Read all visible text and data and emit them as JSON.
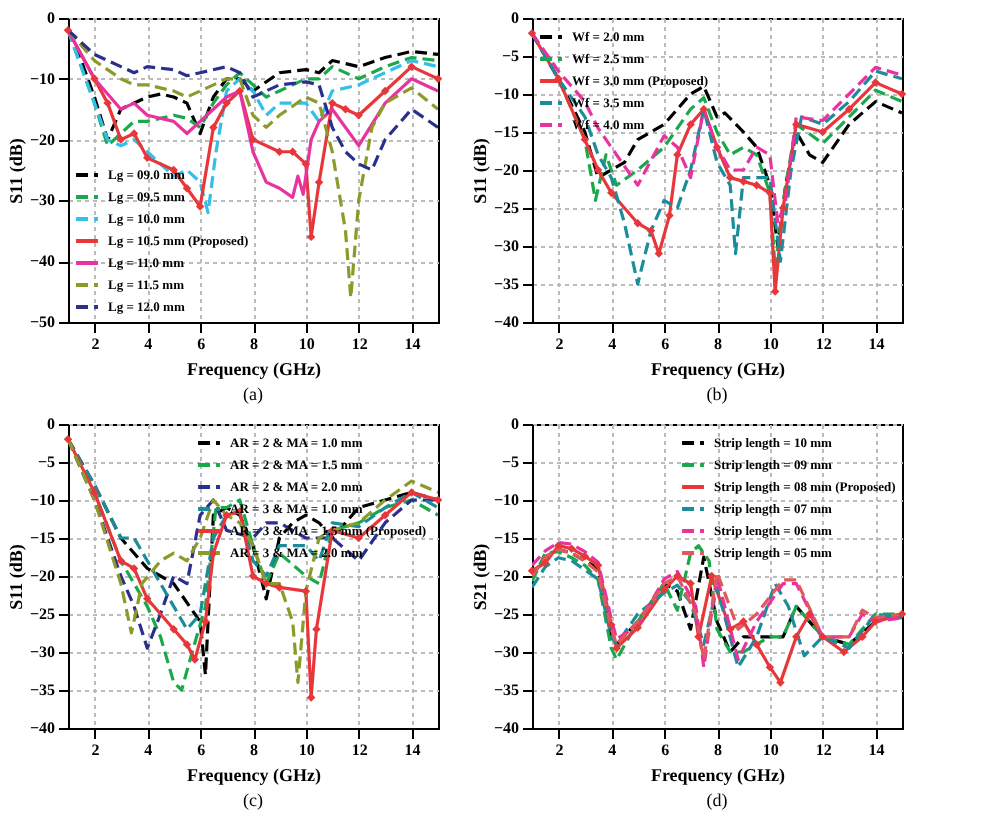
{
  "chart_data": [
    {
      "type": "line",
      "title": "(a)",
      "xlabel": "Frequency (GHz)",
      "ylabel": "S11 (dB)",
      "xlim": [
        1,
        15
      ],
      "ylim": [
        -50,
        0
      ],
      "xticks": [
        2,
        4,
        6,
        8,
        10,
        12,
        14
      ],
      "yticks": [
        -50,
        -40,
        -30,
        -20,
        -10,
        0
      ],
      "grid": true,
      "legend": "bottom left",
      "series": [
        {
          "name": "Lg = 09.0 mm",
          "color": "#000000",
          "line_style": "dashed",
          "x": [
            1,
            1.5,
            2,
            2.5,
            3,
            4,
            4.5,
            5,
            5.5,
            6,
            6.5,
            7,
            7.5,
            8,
            9,
            10,
            10.5,
            11,
            12,
            13,
            14,
            15
          ],
          "values": [
            -2,
            -7,
            -13,
            -20,
            -15,
            -13,
            -12.5,
            -13,
            -14,
            -19,
            -13,
            -10,
            -10,
            -12,
            -9,
            -8.5,
            -9,
            -7,
            -8,
            -6.5,
            -5.5,
            -6
          ]
        },
        {
          "name": "Lg = 09.5 mm",
          "color": "#1aa84a",
          "line_style": "dashed",
          "x": [
            1,
            2,
            2.5,
            3,
            3.5,
            4,
            5,
            5.5,
            6,
            6.5,
            7,
            7.5,
            8,
            8.5,
            9,
            10,
            10.5,
            11,
            12,
            13,
            14,
            15
          ],
          "values": [
            -2,
            -14,
            -21,
            -19,
            -17,
            -17,
            -16,
            -16.5,
            -18,
            -14,
            -11,
            -9,
            -11,
            -13,
            -12,
            -10,
            -10,
            -8,
            -10,
            -8,
            -6.5,
            -7
          ]
        },
        {
          "name": "Lg = 10.0 mm",
          "color": "#33c0e8",
          "line_style": "dashed",
          "x": [
            1,
            2,
            2.5,
            3,
            3.5,
            4,
            5,
            5.5,
            6,
            6.3,
            6.6,
            7,
            7.5,
            8,
            8.5,
            9,
            10,
            10.5,
            11,
            12,
            13,
            14,
            15
          ],
          "values": [
            -2,
            -14,
            -20,
            -21,
            -20,
            -22,
            -26,
            -25,
            -27,
            -32,
            -22,
            -12,
            -10,
            -12,
            -16,
            -14,
            -14,
            -17,
            -12,
            -11,
            -9,
            -7,
            -8
          ]
        },
        {
          "name": "Lg = 10.5 mm (Proposed)",
          "color": "#e8373a",
          "line_style": "solid",
          "marker": "diamond",
          "x": [
            1,
            2,
            2.5,
            3,
            3.5,
            4,
            5,
            5.5,
            6,
            6.5,
            7,
            7.5,
            8,
            9,
            9.5,
            10,
            10.2,
            10.5,
            11,
            11.5,
            12,
            13,
            14,
            15
          ],
          "values": [
            -2,
            -10,
            -14,
            -20,
            -19,
            -23,
            -25,
            -28,
            -31,
            -18,
            -14,
            -12,
            -20,
            -22,
            -22,
            -24,
            -36,
            -27,
            -14,
            -15,
            -16,
            -12,
            -8,
            -10
          ]
        },
        {
          "name": "Lg = 11.0 mm",
          "color": "#e8329e",
          "line_style": "solid",
          "x": [
            1,
            2,
            3,
            3.5,
            4,
            5,
            5.5,
            6,
            6.5,
            7,
            7.5,
            8,
            8.5,
            9,
            9.5,
            9.7,
            9.9,
            10.2,
            10.5,
            11,
            12,
            13,
            14,
            15
          ],
          "values": [
            -2,
            -10,
            -15,
            -14,
            -16,
            -17,
            -19,
            -17,
            -15,
            -13,
            -12,
            -22,
            -27,
            -28,
            -29.5,
            -26,
            -29,
            -20,
            -17,
            -15,
            -21,
            -14,
            -10,
            -12
          ]
        },
        {
          "name": "Lg = 11.5 mm",
          "color": "#8c9a2a",
          "line_style": "dashed",
          "x": [
            1,
            2,
            3,
            3.5,
            4,
            5,
            5.5,
            6,
            7,
            7.5,
            8,
            8.5,
            9,
            10,
            10.5,
            11,
            11.5,
            11.7,
            12,
            12.5,
            13,
            14,
            15
          ],
          "values": [
            -2,
            -7,
            -10,
            -11,
            -11,
            -12,
            -13,
            -12,
            -10,
            -10,
            -16,
            -18,
            -16,
            -13,
            -14,
            -22,
            -35,
            -46,
            -30,
            -18,
            -14,
            -11.5,
            -15
          ]
        },
        {
          "name": "Lg = 12.0 mm",
          "color": "#2a2f8c",
          "line_style": "dashed",
          "x": [
            1,
            2,
            3,
            3.5,
            4,
            5,
            5.5,
            6,
            7,
            7.5,
            8,
            9,
            10,
            10.5,
            11,
            11.5,
            12,
            12.5,
            13,
            14,
            15
          ],
          "values": [
            -2,
            -6,
            -8,
            -9,
            -8,
            -8.5,
            -9.5,
            -9,
            -8,
            -9,
            -13,
            -11,
            -10.5,
            -11,
            -18,
            -22,
            -24,
            -25,
            -20,
            -15,
            -18
          ]
        }
      ]
    },
    {
      "type": "line",
      "title": "(b)",
      "xlabel": "Frequency (GHz)",
      "ylabel": "S11 (dB)",
      "xlim": [
        1,
        15
      ],
      "ylim": [
        -40,
        0
      ],
      "xticks": [
        2,
        4,
        6,
        8,
        10,
        12,
        14
      ],
      "yticks": [
        -40,
        -35,
        -30,
        -25,
        -20,
        -15,
        -10,
        -5,
        0
      ],
      "grid": true,
      "legend": "top left",
      "series": [
        {
          "name": "Wf = 2.0 mm",
          "color": "#000000",
          "line_style": "dashed",
          "x": [
            1,
            2,
            3,
            3.5,
            4,
            4.5,
            5,
            6,
            7,
            7.5,
            8,
            8.3,
            9,
            9.5,
            10,
            10.3,
            10.6,
            11,
            11.5,
            12,
            13,
            14,
            15
          ],
          "values": [
            -2,
            -8,
            -15,
            -21,
            -20,
            -19,
            -16,
            -14,
            -10,
            -9,
            -13,
            -12.5,
            -15,
            -17,
            -22,
            -30,
            -22,
            -15,
            -18,
            -19,
            -14,
            -11,
            -12.5
          ]
        },
        {
          "name": "Wf = 2.5 mm",
          "color": "#1aa84a",
          "line_style": "dashed",
          "x": [
            1,
            2,
            3,
            3.4,
            3.8,
            4.2,
            5,
            6,
            7,
            7.5,
            8,
            8.5,
            9,
            9.5,
            10,
            10.2,
            10.6,
            11,
            12,
            13,
            14,
            15
          ],
          "values": [
            -2,
            -8,
            -16,
            -24,
            -18,
            -22,
            -20,
            -17,
            -12,
            -10.5,
            -15,
            -18,
            -17,
            -18,
            -23,
            -33,
            -22,
            -14,
            -16.5,
            -13,
            -9.5,
            -11
          ]
        },
        {
          "name": "Wf = 3.0 mm (Proposed)",
          "color": "#e8373a",
          "line_style": "solid",
          "marker": "diamond",
          "x": [
            1,
            2,
            3,
            3.5,
            4,
            5,
            5.5,
            5.8,
            6.2,
            6.5,
            7,
            7.5,
            8,
            8.5,
            9,
            9.5,
            10,
            10.2,
            10.5,
            11,
            12,
            13,
            14,
            15
          ],
          "values": [
            -2,
            -8,
            -16,
            -20,
            -23,
            -27,
            -28,
            -31,
            -26,
            -18,
            -14,
            -12,
            -17,
            -21,
            -21.5,
            -22,
            -23,
            -36,
            -25,
            -14,
            -15,
            -12,
            -8.5,
            -10
          ]
        },
        {
          "name": "Wf = 3.5 mm",
          "color": "#1a8c9a",
          "line_style": "dashed",
          "x": [
            1,
            2,
            3,
            3.5,
            4,
            4.5,
            5,
            5.5,
            6,
            6.5,
            7,
            7.5,
            8,
            8.5,
            8.7,
            9,
            9.5,
            10,
            10.4,
            10.8,
            11.2,
            12,
            13,
            14,
            15
          ],
          "values": [
            -2,
            -8,
            -13,
            -18,
            -21,
            -27,
            -35,
            -28,
            -24,
            -25,
            -20,
            -12,
            -19,
            -22,
            -31,
            -21,
            -21,
            -21,
            -32,
            -20,
            -13,
            -14,
            -11,
            -7,
            -8
          ]
        },
        {
          "name": "Wf = 4.0 mm",
          "color": "#e8329e",
          "line_style": "dashed",
          "x": [
            1,
            2,
            3,
            3.5,
            4,
            5,
            6,
            6.5,
            7,
            7.5,
            8,
            8.5,
            9,
            9.5,
            10,
            10.3,
            10.6,
            11,
            12,
            13,
            14,
            15
          ],
          "values": [
            -2,
            -7,
            -11,
            -14.5,
            -17,
            -22,
            -15.5,
            -17,
            -21,
            -12,
            -17,
            -20,
            -20,
            -17,
            -18,
            -27,
            -24,
            -13,
            -13.5,
            -10,
            -6.5,
            -7.5
          ]
        }
      ]
    },
    {
      "type": "line",
      "title": "(c)",
      "xlabel": "Frequency (GHz)",
      "ylabel": "S11 (dB)",
      "xlim": [
        1,
        15
      ],
      "ylim": [
        -40,
        0
      ],
      "xticks": [
        2,
        4,
        6,
        8,
        10,
        12,
        14
      ],
      "yticks": [
        -40,
        -35,
        -30,
        -25,
        -20,
        -15,
        -10,
        -5,
        0
      ],
      "grid": true,
      "legend": "top right",
      "series": [
        {
          "name": "AR = 2  & MA = 1.0 mm",
          "color": "#000000",
          "line_style": "dashed",
          "x": [
            1,
            2,
            3,
            4,
            5,
            6,
            6.2,
            6.5,
            7,
            7.5,
            8,
            8.5,
            9,
            9.5,
            10,
            10.5,
            11,
            12,
            13,
            14,
            15
          ],
          "values": [
            -2,
            -8,
            -15,
            -19,
            -21,
            -26,
            -33,
            -12,
            -11,
            -12,
            -16,
            -23,
            -15,
            -13,
            -12,
            -13,
            -15,
            -11,
            -10,
            -9,
            -10
          ]
        },
        {
          "name": "AR = 2  & MA = 1.5 mm",
          "color": "#1aa84a",
          "line_style": "dashed",
          "x": [
            1,
            2,
            3,
            4,
            4.5,
            5,
            5.3,
            5.7,
            6.2,
            6.6,
            7,
            7.5,
            8,
            8.5,
            9,
            10,
            10.5,
            11,
            12,
            13,
            14,
            15
          ],
          "values": [
            -2,
            -9,
            -18,
            -24,
            -28,
            -34,
            -35,
            -30,
            -24,
            -11,
            -11,
            -10,
            -16,
            -21,
            -17,
            -20,
            -21,
            -14,
            -13,
            -11,
            -10,
            -12
          ]
        },
        {
          "name": "AR = 2  & MA = 2.0 mm",
          "color": "#2a2f8c",
          "line_style": "dashed",
          "x": [
            1,
            2,
            3,
            3.5,
            4,
            4.5,
            5,
            5.5,
            6,
            6.5,
            7,
            8,
            8.5,
            9,
            10,
            11,
            12,
            13,
            14,
            15
          ],
          "values": [
            -2,
            -10,
            -20,
            -24,
            -29.5,
            -25,
            -20,
            -21,
            -12,
            -10,
            -14,
            -15,
            -13,
            -13,
            -15,
            -15,
            -18,
            -13,
            -10,
            -10
          ]
        },
        {
          "name": "AR = 3  & MA = 1.0 mm",
          "color": "#1a8c9a",
          "line_style": "dashed",
          "x": [
            1,
            2,
            3,
            3.5,
            4,
            5,
            5.5,
            6,
            6.5,
            7,
            7.5,
            8,
            8.5,
            9,
            10,
            10.5,
            11,
            12,
            13,
            14,
            15
          ],
          "values": [
            -2,
            -8,
            -15,
            -15,
            -18,
            -24,
            -27,
            -25,
            -15,
            -12,
            -11.5,
            -18,
            -20,
            -16,
            -16,
            -18,
            -13,
            -13.5,
            -11,
            -9,
            -11
          ]
        },
        {
          "name": "AR = 3  & MA = 1.5 mm (Proposed)",
          "color": "#e8373a",
          "line_style": "solid",
          "marker": "diamond",
          "x": [
            1,
            2,
            3,
            3.5,
            4,
            5,
            5.5,
            5.8,
            6.2,
            6.5,
            7,
            7.5,
            8,
            8.5,
            9,
            10,
            10.2,
            10.4,
            11,
            12,
            13,
            14,
            15
          ],
          "values": [
            -2,
            -9,
            -18,
            -19,
            -23,
            -27,
            -29,
            -31,
            -26,
            -17,
            -12,
            -11.5,
            -20,
            -21,
            -21.5,
            -22,
            -36,
            -27,
            -14,
            -15,
            -12,
            -9,
            -10
          ]
        },
        {
          "name": "AR = 3  & MA = 2.0 mm",
          "color": "#8c9a2a",
          "line_style": "dashed",
          "x": [
            1,
            2,
            3,
            3.4,
            3.8,
            4.5,
            5,
            5.5,
            6,
            6.5,
            7,
            7.5,
            8,
            8.5,
            9,
            9.5,
            9.7,
            10,
            10.5,
            11,
            12,
            13,
            14,
            15
          ],
          "values": [
            -2,
            -10,
            -21,
            -27.5,
            -21,
            -18,
            -17,
            -18,
            -15,
            -10,
            -12,
            -13,
            -16,
            -21,
            -21,
            -26,
            -34,
            -22,
            -15,
            -14,
            -13,
            -10,
            -7.5,
            -9
          ]
        }
      ]
    },
    {
      "type": "line",
      "title": "(d)",
      "xlabel": "Frequency (GHz)",
      "ylabel": "S21 (dB)",
      "xlim": [
        1,
        15
      ],
      "ylim": [
        -40,
        0
      ],
      "xticks": [
        2,
        4,
        6,
        8,
        10,
        12,
        14
      ],
      "yticks": [
        -40,
        -35,
        -30,
        -25,
        -20,
        -15,
        -10,
        -5,
        0
      ],
      "grid": true,
      "legend": "top right",
      "series": [
        {
          "name": "Strip length = 10 mm",
          "color": "#000000",
          "line_style": "dashed",
          "x": [
            1,
            1.5,
            2,
            2.5,
            3,
            3.5,
            4,
            4.2,
            5,
            6,
            6.5,
            7,
            7.5,
            8,
            8.5,
            9,
            10,
            10.5,
            11,
            12,
            13,
            14,
            15
          ],
          "values": [
            -20,
            -17.5,
            -16.5,
            -17,
            -18,
            -19,
            -28,
            -29,
            -26,
            -21,
            -22,
            -27,
            -17.5,
            -26,
            -30,
            -28,
            -28,
            -28,
            -24,
            -28,
            -29,
            -26,
            -25
          ]
        },
        {
          "name": "Strip length = 09 mm",
          "color": "#1aa84a",
          "line_style": "dashed",
          "x": [
            1,
            1.5,
            2,
            2.5,
            3,
            3.5,
            4,
            4.2,
            5,
            6,
            6.5,
            7,
            7.3,
            7.7,
            8,
            8.5,
            9,
            10,
            10.5,
            11,
            12,
            13,
            14,
            15
          ],
          "values": [
            -20.7,
            -17,
            -16.8,
            -17.6,
            -18.6,
            -20.5,
            -29.5,
            -31,
            -26,
            -21,
            -24.5,
            -17,
            -16,
            -18,
            -27,
            -30,
            -30,
            -28,
            -28,
            -24,
            -28,
            -29,
            -25,
            -25
          ]
        },
        {
          "name": "Strip length = 08 mm (Proposed)",
          "color": "#e8373a",
          "line_style": "solid",
          "marker": "diamond",
          "x": [
            1,
            1.5,
            2,
            2.5,
            3,
            3.5,
            4,
            4.2,
            5,
            6,
            6.5,
            7,
            7.3,
            7.8,
            8.5,
            9,
            9.5,
            10,
            10.4,
            11,
            11.5,
            12,
            12.8,
            13.5,
            14,
            15
          ],
          "values": [
            -19.3,
            -18.3,
            -16,
            -16.4,
            -17.4,
            -18.6,
            -26.4,
            -29.5,
            -26.8,
            -21.8,
            -20,
            -21,
            -28,
            -20,
            -27,
            -26,
            -29,
            -32,
            -34,
            -28,
            -25,
            -28,
            -30,
            -28,
            -26,
            -25
          ]
        },
        {
          "name": "Strip length = 07 mm",
          "color": "#1a8c9a",
          "line_style": "dashed",
          "x": [
            1,
            1.5,
            2,
            2.5,
            3,
            3.5,
            4,
            4.2,
            5,
            6,
            6.5,
            7,
            7.5,
            8,
            8.8,
            9.5,
            10.2,
            10.7,
            11.3,
            12,
            13,
            14,
            15
          ],
          "values": [
            -21.5,
            -18.8,
            -17.6,
            -18,
            -19.2,
            -20.4,
            -28,
            -29,
            -25,
            -22.2,
            -21.2,
            -23.5,
            -29,
            -21.5,
            -32,
            -28,
            -21,
            -24,
            -30.5,
            -28,
            -29.5,
            -25,
            -25.5
          ]
        },
        {
          "name": "Strip length = 06 mm",
          "color": "#e8329e",
          "line_style": "dashed",
          "x": [
            1,
            1.5,
            2,
            2.5,
            3,
            3.5,
            4,
            4.2,
            5,
            6,
            6.5,
            7.2,
            7.5,
            8,
            8.8,
            9.5,
            10.5,
            11,
            12,
            13,
            13.5,
            14,
            15
          ],
          "values": [
            -18.6,
            -16.7,
            -15.6,
            -15.8,
            -16.8,
            -18.2,
            -25.6,
            -28.3,
            -26.5,
            -20.4,
            -19.4,
            -24,
            -32,
            -20,
            -31,
            -26,
            -21,
            -21,
            -28,
            -28,
            -25,
            -26,
            -25.5
          ]
        },
        {
          "name": "Strip length = 05 mm",
          "color": "#e05a5a",
          "line_style": "dashed",
          "x": [
            1,
            1.5,
            2,
            2.5,
            3,
            3.5,
            4,
            4.2,
            5,
            6,
            6.5,
            7.2,
            7.5,
            8,
            8.8,
            9.5,
            10.5,
            11,
            12,
            13,
            13.5,
            14,
            15
          ],
          "values": [
            -20,
            -17.5,
            -16.5,
            -17,
            -18,
            -19.5,
            -27,
            -29,
            -26,
            -21,
            -20,
            -25,
            -31,
            -19.5,
            -27,
            -25,
            -20.5,
            -20.5,
            -28,
            -28,
            -24.5,
            -25.5,
            -25
          ]
        }
      ]
    }
  ]
}
